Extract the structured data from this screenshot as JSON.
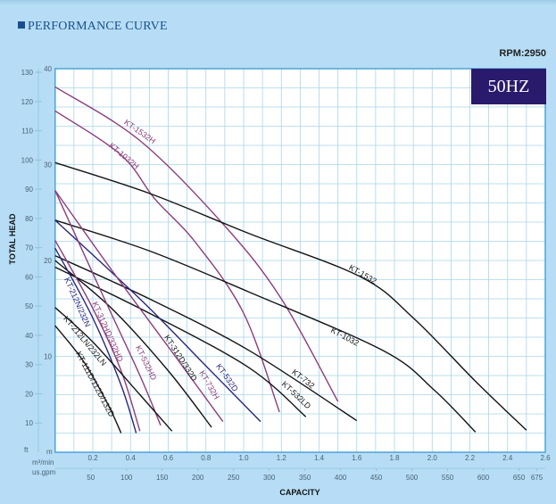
{
  "header": {
    "title": "PERFORMANCE CURVE",
    "rpm": "RPM:2950",
    "frequency": "50HZ"
  },
  "colors": {
    "background": "#b6ddf5",
    "grid": "#a9d5e8",
    "border": "#4ba4d8",
    "purple": "#8c3c7c",
    "blue": "#27267e",
    "black": "#141414",
    "badge": "#2a1a6c"
  },
  "chart_data": {
    "type": "line",
    "title": "PERFORMANCE CURVE",
    "xlabel": "CAPACITY",
    "ylabel": "TOTAL HEAD",
    "x_unit": "m³/min",
    "x_unit_secondary": "us.gpm",
    "y_unit": "m",
    "y_unit_secondary": "ft",
    "xlim": [
      0,
      2.6
    ],
    "ylim": [
      0,
      40
    ],
    "grid": true,
    "x_ticks": [
      "0.2",
      "0.4",
      "0.6",
      "0.8",
      "1.0",
      "1.2",
      "1.4",
      "1.6",
      "1.8",
      "2.0",
      "2.2",
      "2.4",
      "2.6"
    ],
    "x2_ticks": [
      "50",
      "100",
      "150",
      "200",
      "250",
      "300",
      "350",
      "400",
      "450",
      "500",
      "550",
      "600",
      "650",
      "675"
    ],
    "y_ticks": [
      "10",
      "20",
      "30",
      "40"
    ],
    "y2_ticks": [
      "10",
      "20",
      "30",
      "40",
      "50",
      "60",
      "70",
      "80",
      "90",
      "100",
      "110",
      "120",
      "130"
    ],
    "series": [
      {
        "name": "KT-1532H",
        "color": "purple",
        "points": [
          [
            0,
            38.1
          ],
          [
            0.45,
            32.5
          ],
          [
            0.9,
            23.6
          ],
          [
            1.2,
            16
          ],
          [
            1.5,
            5.3
          ]
        ]
      },
      {
        "name": "KT-1032H",
        "color": "purple",
        "points": [
          [
            0,
            35.6
          ],
          [
            0.35,
            31
          ],
          [
            0.53,
            26.4
          ],
          [
            0.74,
            22
          ],
          [
            1.0,
            14.5
          ],
          [
            1.19,
            4.2
          ]
        ]
      },
      {
        "name": "KT-1532",
        "color": "black",
        "points": [
          [
            0,
            30.2
          ],
          [
            0.5,
            27
          ],
          [
            1.03,
            22.8
          ],
          [
            1.62,
            18.3
          ],
          [
            1.9,
            14
          ],
          [
            2.23,
            7.4
          ],
          [
            2.5,
            2.3
          ]
        ]
      },
      {
        "name": "KT-1032",
        "color": "black",
        "points": [
          [
            0,
            24.2
          ],
          [
            0.5,
            21
          ],
          [
            1.03,
            16.7
          ],
          [
            1.74,
            10.6
          ],
          [
            2.01,
            6.5
          ],
          [
            2.23,
            2.1
          ]
        ]
      },
      {
        "name": "KT-732",
        "color": "black",
        "points": [
          [
            0,
            20.5
          ],
          [
            0.5,
            16
          ],
          [
            1.03,
            10.6
          ],
          [
            1.6,
            3.3
          ]
        ]
      },
      {
        "name": "KT-532LD",
        "color": "black",
        "points": [
          [
            0,
            19.3
          ],
          [
            0.5,
            14.5
          ],
          [
            1.03,
            8.8
          ],
          [
            1.33,
            3.7
          ]
        ]
      },
      {
        "name": "KT-532D",
        "color": "blue",
        "points": [
          [
            0,
            24.2
          ],
          [
            0.46,
            15.8
          ],
          [
            0.8,
            9
          ],
          [
            1.09,
            3.2
          ]
        ]
      },
      {
        "name": "KT-732H",
        "color": "purple",
        "points": [
          [
            0,
            27.3
          ],
          [
            0.3,
            19
          ],
          [
            0.6,
            11
          ],
          [
            0.89,
            3.2
          ]
        ]
      },
      {
        "name": "KT-312D/332D",
        "color": "black",
        "points": [
          [
            0,
            20.0
          ],
          [
            0.3,
            15
          ],
          [
            0.6,
            8.5
          ],
          [
            0.83,
            2.6
          ]
        ]
      },
      {
        "name": "KT-532HD",
        "color": "purple",
        "points": [
          [
            0,
            27.3
          ],
          [
            0.25,
            16.5
          ],
          [
            0.45,
            8
          ],
          [
            0.56,
            2.8
          ]
        ]
      },
      {
        "name": "KT-312HD/332HD",
        "color": "purple",
        "points": [
          [
            0,
            22.1
          ],
          [
            0.2,
            15
          ],
          [
            0.35,
            8.5
          ],
          [
            0.45,
            2.2
          ]
        ]
      },
      {
        "name": "KT-212N/232N",
        "color": "blue",
        "points": [
          [
            0,
            21.3
          ],
          [
            0.2,
            14
          ],
          [
            0.35,
            7
          ],
          [
            0.43,
            2
          ]
        ]
      },
      {
        "name": "KT-212LN/232LN",
        "color": "black",
        "points": [
          [
            0,
            15.1
          ],
          [
            0.2,
            11.5
          ],
          [
            0.45,
            6
          ],
          [
            0.62,
            2.2
          ]
        ]
      },
      {
        "name": "KT-111D/112D/132D",
        "color": "black",
        "points": [
          [
            0,
            13.2
          ],
          [
            0.15,
            9.5
          ],
          [
            0.28,
            5
          ],
          [
            0.35,
            2
          ]
        ]
      }
    ]
  }
}
